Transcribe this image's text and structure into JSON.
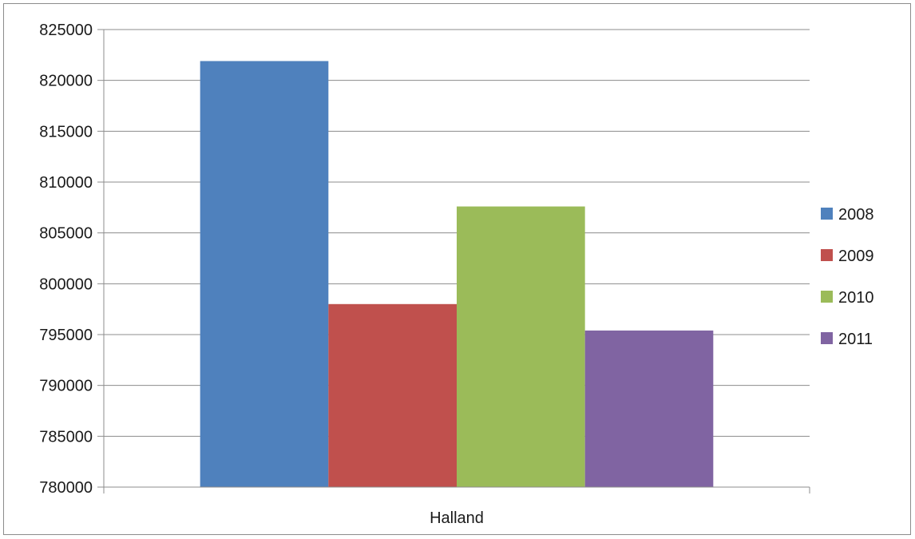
{
  "chart_data": {
    "type": "bar",
    "categories": [
      "Halland"
    ],
    "series": [
      {
        "name": "2008",
        "values": [
          821900
        ],
        "color": "#4F81BD"
      },
      {
        "name": "2009",
        "values": [
          798000
        ],
        "color": "#C0504D"
      },
      {
        "name": "2010",
        "values": [
          807600
        ],
        "color": "#9BBB59"
      },
      {
        "name": "2011",
        "values": [
          795400
        ],
        "color": "#8064A2"
      }
    ],
    "ylim": [
      780000,
      825000
    ],
    "yticks": [
      "780000",
      "785000",
      "790000",
      "795000",
      "800000",
      "805000",
      "810000",
      "815000",
      "820000",
      "825000"
    ],
    "grid": true,
    "legend_position": "right"
  }
}
